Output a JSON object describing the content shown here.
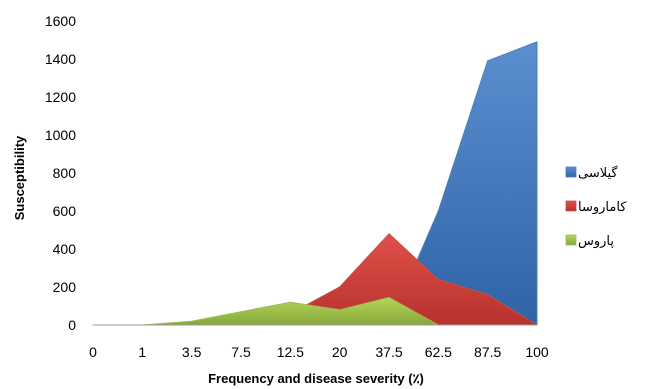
{
  "chart_data": {
    "type": "area",
    "title": "",
    "xlabel": "Frequency and disease severity (٪)",
    "ylabel": "Susceptibility",
    "categories": [
      "0",
      "1",
      "3.5",
      "7.5",
      "12.5",
      "20",
      "37.5",
      "62.5",
      "87.5",
      "100"
    ],
    "ylim": [
      0,
      1600
    ],
    "yticks": [
      0,
      200,
      400,
      600,
      800,
      1000,
      1200,
      1400,
      1600
    ],
    "grid": false,
    "legend_position": "right",
    "series": [
      {
        "name": "گیلاسی",
        "color": "#4a7ebb",
        "values": [
          0,
          0,
          0,
          0,
          0,
          0,
          0,
          600,
          1390,
          1490
        ]
      },
      {
        "name": "کاماروسا",
        "color": "#c0504d",
        "values": [
          0,
          0,
          0,
          40,
          60,
          200,
          480,
          240,
          160,
          0
        ]
      },
      {
        "name": "پاروس",
        "color": "#9bbb59",
        "values": [
          0,
          0,
          20,
          70,
          120,
          80,
          145,
          0,
          0,
          0
        ]
      }
    ]
  }
}
